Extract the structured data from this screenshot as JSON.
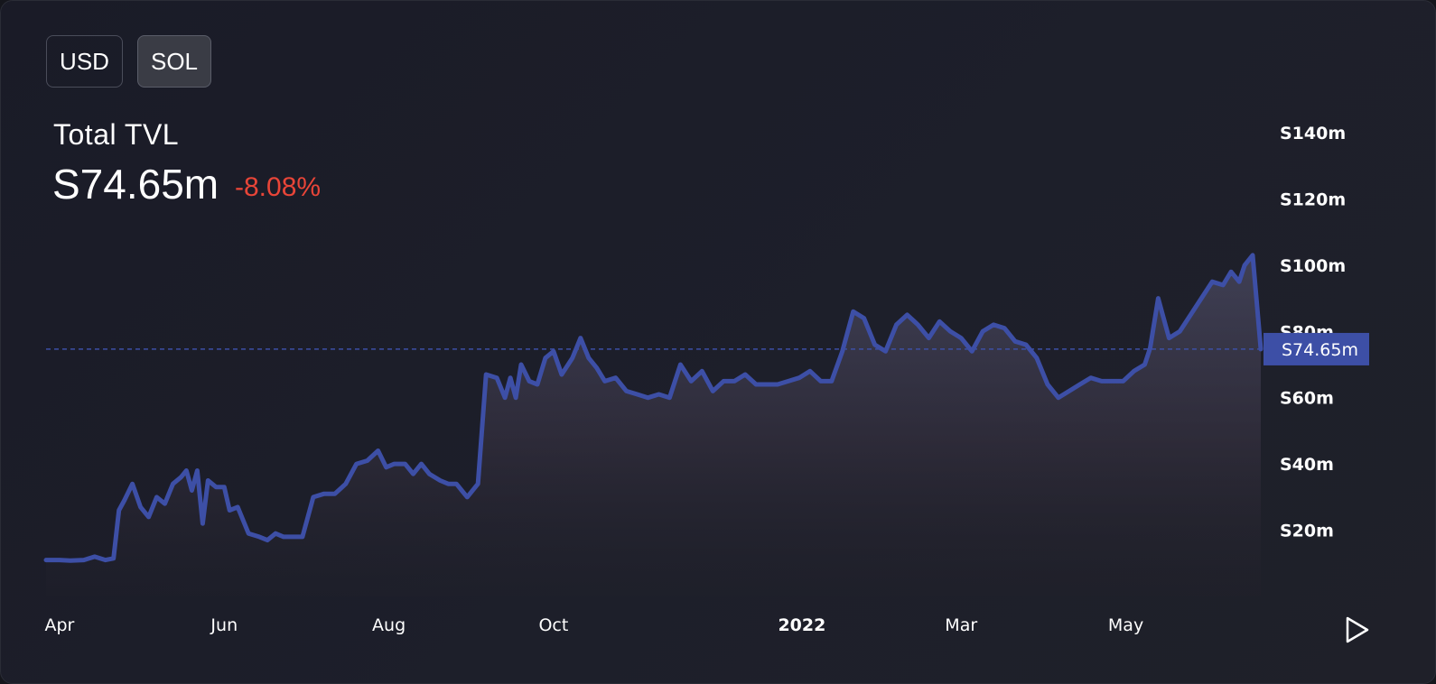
{
  "currency_toggle": {
    "usd_label": "USD",
    "sol_label": "SOL",
    "selected": "SOL"
  },
  "header": {
    "title": "Total TVL",
    "value": "S74.65m",
    "change": "-8.08%"
  },
  "colors": {
    "line": "#3d4fa6",
    "price_tag": "#3d4fa6",
    "change_negative": "#e84538"
  },
  "current_price_label": "S74.65m",
  "chart_data": {
    "type": "area",
    "xlabel": "",
    "ylabel": "",
    "ylim": [
      0,
      140
    ],
    "y_unit": "millions",
    "xlim": [
      "2021-03-27",
      "2022-06-20"
    ],
    "y_ticks": [
      {
        "value": 20,
        "label": "S20m"
      },
      {
        "value": 40,
        "label": "S40m"
      },
      {
        "value": 60,
        "label": "S60m"
      },
      {
        "value": 80,
        "label": "S80m"
      },
      {
        "value": 100,
        "label": "S100m"
      },
      {
        "value": 120,
        "label": "S120m"
      },
      {
        "value": 140,
        "label": "S140m"
      }
    ],
    "x_ticks": [
      {
        "date": "2021-04-01",
        "label": "Apr",
        "bold": false
      },
      {
        "date": "2021-06-01",
        "label": "Jun",
        "bold": false
      },
      {
        "date": "2021-08-01",
        "label": "Aug",
        "bold": false
      },
      {
        "date": "2021-10-01",
        "label": "Oct",
        "bold": false
      },
      {
        "date": "2022-01-01",
        "label": "2022",
        "bold": true
      },
      {
        "date": "2022-03-01",
        "label": "Mar",
        "bold": false
      },
      {
        "date": "2022-05-01",
        "label": "May",
        "bold": false
      }
    ],
    "current_value": 74.65,
    "series": [
      {
        "x": [
          "2021-03-27",
          "2021-04-01",
          "2021-04-05",
          "2021-04-10",
          "2021-04-14",
          "2021-04-18",
          "2021-04-21",
          "2021-04-23",
          "2021-04-25",
          "2021-04-28",
          "2021-05-01",
          "2021-05-04",
          "2021-05-07",
          "2021-05-10",
          "2021-05-13",
          "2021-05-16",
          "2021-05-18",
          "2021-05-20",
          "2021-05-22",
          "2021-05-24",
          "2021-05-26",
          "2021-05-29",
          "2021-06-01",
          "2021-06-03",
          "2021-06-06",
          "2021-06-10",
          "2021-06-14",
          "2021-06-17",
          "2021-06-20",
          "2021-06-23",
          "2021-06-26",
          "2021-06-30",
          "2021-07-04",
          "2021-07-08",
          "2021-07-12",
          "2021-07-16",
          "2021-07-20",
          "2021-07-24",
          "2021-07-28",
          "2021-07-31",
          "2021-08-03",
          "2021-08-07",
          "2021-08-10",
          "2021-08-13",
          "2021-08-16",
          "2021-08-20",
          "2021-08-23",
          "2021-08-26",
          "2021-08-30",
          "2021-09-03",
          "2021-09-06",
          "2021-09-10",
          "2021-09-13",
          "2021-09-15",
          "2021-09-17",
          "2021-09-19",
          "2021-09-22",
          "2021-09-25",
          "2021-09-28",
          "2021-10-01",
          "2021-10-04",
          "2021-10-08",
          "2021-10-11",
          "2021-10-14",
          "2021-10-17",
          "2021-10-20",
          "2021-10-24",
          "2021-10-28",
          "2021-11-01",
          "2021-11-05",
          "2021-11-09",
          "2021-11-13",
          "2021-11-17",
          "2021-11-21",
          "2021-11-25",
          "2021-11-29",
          "2021-12-03",
          "2021-12-07",
          "2021-12-11",
          "2021-12-15",
          "2021-12-19",
          "2021-12-23",
          "2021-12-27",
          "2021-12-31",
          "2022-01-04",
          "2022-01-08",
          "2022-01-12",
          "2022-01-16",
          "2022-01-20",
          "2022-01-24",
          "2022-01-28",
          "2022-02-01",
          "2022-02-05",
          "2022-02-09",
          "2022-02-13",
          "2022-02-17",
          "2022-02-21",
          "2022-02-25",
          "2022-03-01",
          "2022-03-05",
          "2022-03-09",
          "2022-03-13",
          "2022-03-17",
          "2022-03-21",
          "2022-03-25",
          "2022-03-29",
          "2022-04-02",
          "2022-04-06",
          "2022-04-10",
          "2022-04-14",
          "2022-04-18",
          "2022-04-22",
          "2022-04-26",
          "2022-04-30",
          "2022-05-04",
          "2022-05-08",
          "2022-05-10",
          "2022-05-13",
          "2022-05-17",
          "2022-05-21",
          "2022-05-25",
          "2022-05-29",
          "2022-06-02",
          "2022-06-06",
          "2022-06-09",
          "2022-06-12",
          "2022-06-14",
          "2022-06-17",
          "2022-06-20"
        ],
        "values": [
          11,
          11,
          10.8,
          11,
          12,
          11,
          11.5,
          26,
          29,
          34,
          27,
          24,
          30,
          28,
          34,
          36,
          38,
          32,
          38,
          22,
          35,
          33,
          33,
          26,
          27,
          19,
          18,
          17,
          19,
          18,
          18,
          18,
          30,
          31,
          31,
          34,
          40,
          41,
          44,
          39,
          40,
          40,
          37,
          40,
          37,
          35,
          34,
          34,
          30,
          34,
          67,
          66,
          60,
          66,
          60,
          70,
          65,
          64,
          72,
          74,
          67,
          72,
          78,
          72,
          69,
          65,
          66,
          62,
          61,
          60,
          61,
          60,
          70,
          65,
          68,
          62,
          65,
          65,
          67,
          64,
          64,
          64,
          65,
          66,
          68,
          65,
          65,
          74,
          86,
          84,
          76,
          74,
          82,
          85,
          82,
          78,
          83,
          80,
          78,
          74,
          80,
          82,
          81,
          77,
          76,
          72,
          64,
          60,
          62,
          64,
          66,
          65,
          65,
          65,
          68,
          70,
          75,
          90,
          78,
          80,
          85,
          90,
          95,
          94,
          98,
          95,
          100,
          103,
          74.65
        ]
      }
    ]
  }
}
